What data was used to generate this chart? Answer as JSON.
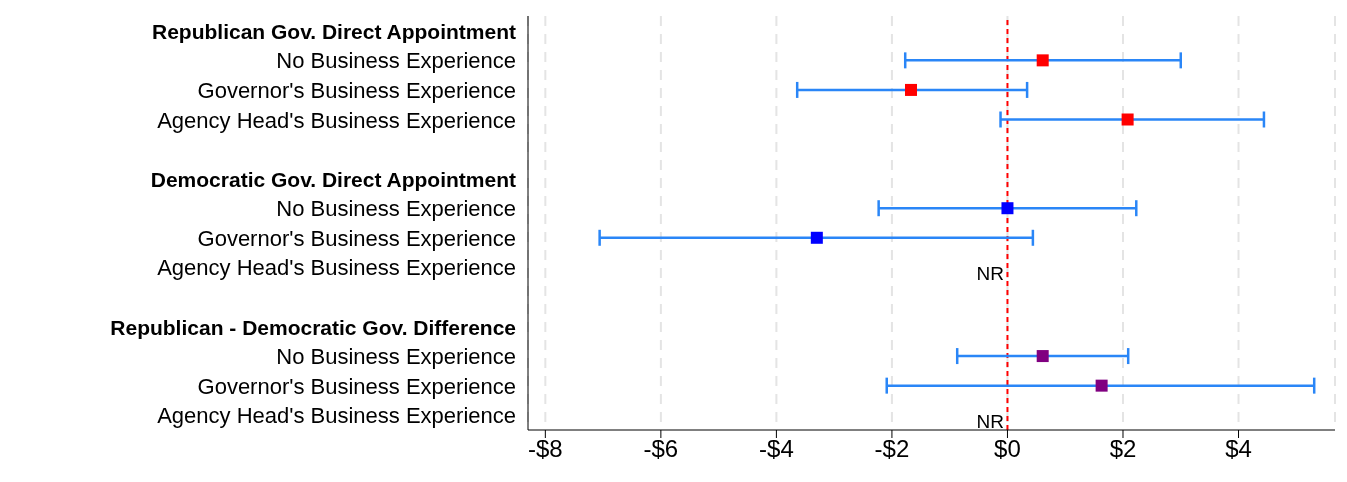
{
  "chart_data": {
    "type": "scatter",
    "categories": [
      "Republican Gov. Direct Appointment",
      "No Business Experience",
      "Governor's Business Experience",
      "Agency Head's Business Experience",
      null,
      "Democratic Gov. Direct Appointment",
      "No Business Experience",
      "Governor's Business Experience",
      "Agency Head's Business Experience",
      null,
      "Republican - Democratic Gov. Difference",
      "No Business Experience",
      "Governor's Business Experience",
      "Agency Head's Business Experience"
    ],
    "series": [
      {
        "color": "#ff0000",
        "values": [
          null,
          0.61,
          null,
          null,
          null,
          null,
          null,
          null,
          null,
          null,
          null,
          null,
          null,
          null
        ],
        "errors": [
          null,
          [
            -1.77,
            3.0
          ],
          null,
          null,
          null,
          null,
          null,
          null,
          null,
          null,
          null,
          null,
          null,
          null
        ]
      },
      {
        "color": "#ff0000",
        "values": [
          null,
          null,
          -1.67,
          2.08,
          null,
          null,
          null,
          null,
          null,
          null,
          null,
          null,
          null,
          null
        ],
        "errors": [
          null,
          null,
          [
            -3.64,
            0.34
          ],
          [
            -0.12,
            4.44
          ],
          null,
          null,
          null,
          null,
          null,
          null,
          null,
          null,
          null,
          null
        ]
      },
      {
        "color": "#0000ff",
        "values": [
          null,
          null,
          null,
          null,
          null,
          null,
          0.0,
          null,
          null,
          null,
          null,
          null,
          null,
          null
        ],
        "errors": [
          null,
          null,
          null,
          null,
          null,
          null,
          [
            -2.23,
            2.23
          ],
          null,
          null,
          null,
          null,
          null,
          null,
          null
        ]
      },
      {
        "color": "#0000ff",
        "values": [
          null,
          null,
          null,
          null,
          null,
          null,
          null,
          -3.3,
          null,
          null,
          null,
          null,
          null,
          null
        ],
        "errors": [
          null,
          null,
          null,
          null,
          null,
          null,
          null,
          [
            -7.06,
            0.44
          ],
          null,
          null,
          null,
          null,
          null,
          null
        ]
      },
      {
        "color": "#800080",
        "values": [
          null,
          null,
          null,
          null,
          null,
          null,
          null,
          null,
          null,
          null,
          null,
          0.61,
          null,
          null
        ],
        "errors": [
          null,
          null,
          null,
          null,
          null,
          null,
          null,
          null,
          null,
          null,
          null,
          [
            -0.87,
            2.09
          ],
          null,
          null
        ]
      },
      {
        "color": "#800080",
        "values": [
          null,
          null,
          null,
          null,
          null,
          null,
          null,
          null,
          null,
          null,
          null,
          null,
          1.63,
          null
        ],
        "errors": [
          null,
          null,
          null,
          null,
          null,
          null,
          null,
          null,
          null,
          null,
          null,
          null,
          [
            -2.09,
            5.31
          ],
          null
        ]
      }
    ],
    "marker": "square",
    "orientation": "horizontal",
    "xlim": [
      -8.3,
      5.67
    ],
    "xticks": [
      {
        "value": -8,
        "label": "-$8"
      },
      {
        "value": -6,
        "label": "-$6"
      },
      {
        "value": -4,
        "label": "-$4"
      },
      {
        "value": -2,
        "label": "-$2"
      },
      {
        "value": 0,
        "label": "$0"
      },
      {
        "value": 2,
        "label": "$2"
      },
      {
        "value": 4,
        "label": "$4"
      }
    ],
    "grid": "x",
    "ref_lines": [
      {
        "axis": "x",
        "value": 0,
        "color": "#ff0000",
        "line_style": "dashed"
      }
    ],
    "annotations": [
      "NR",
      "NR"
    ],
    "legend": false
  }
}
